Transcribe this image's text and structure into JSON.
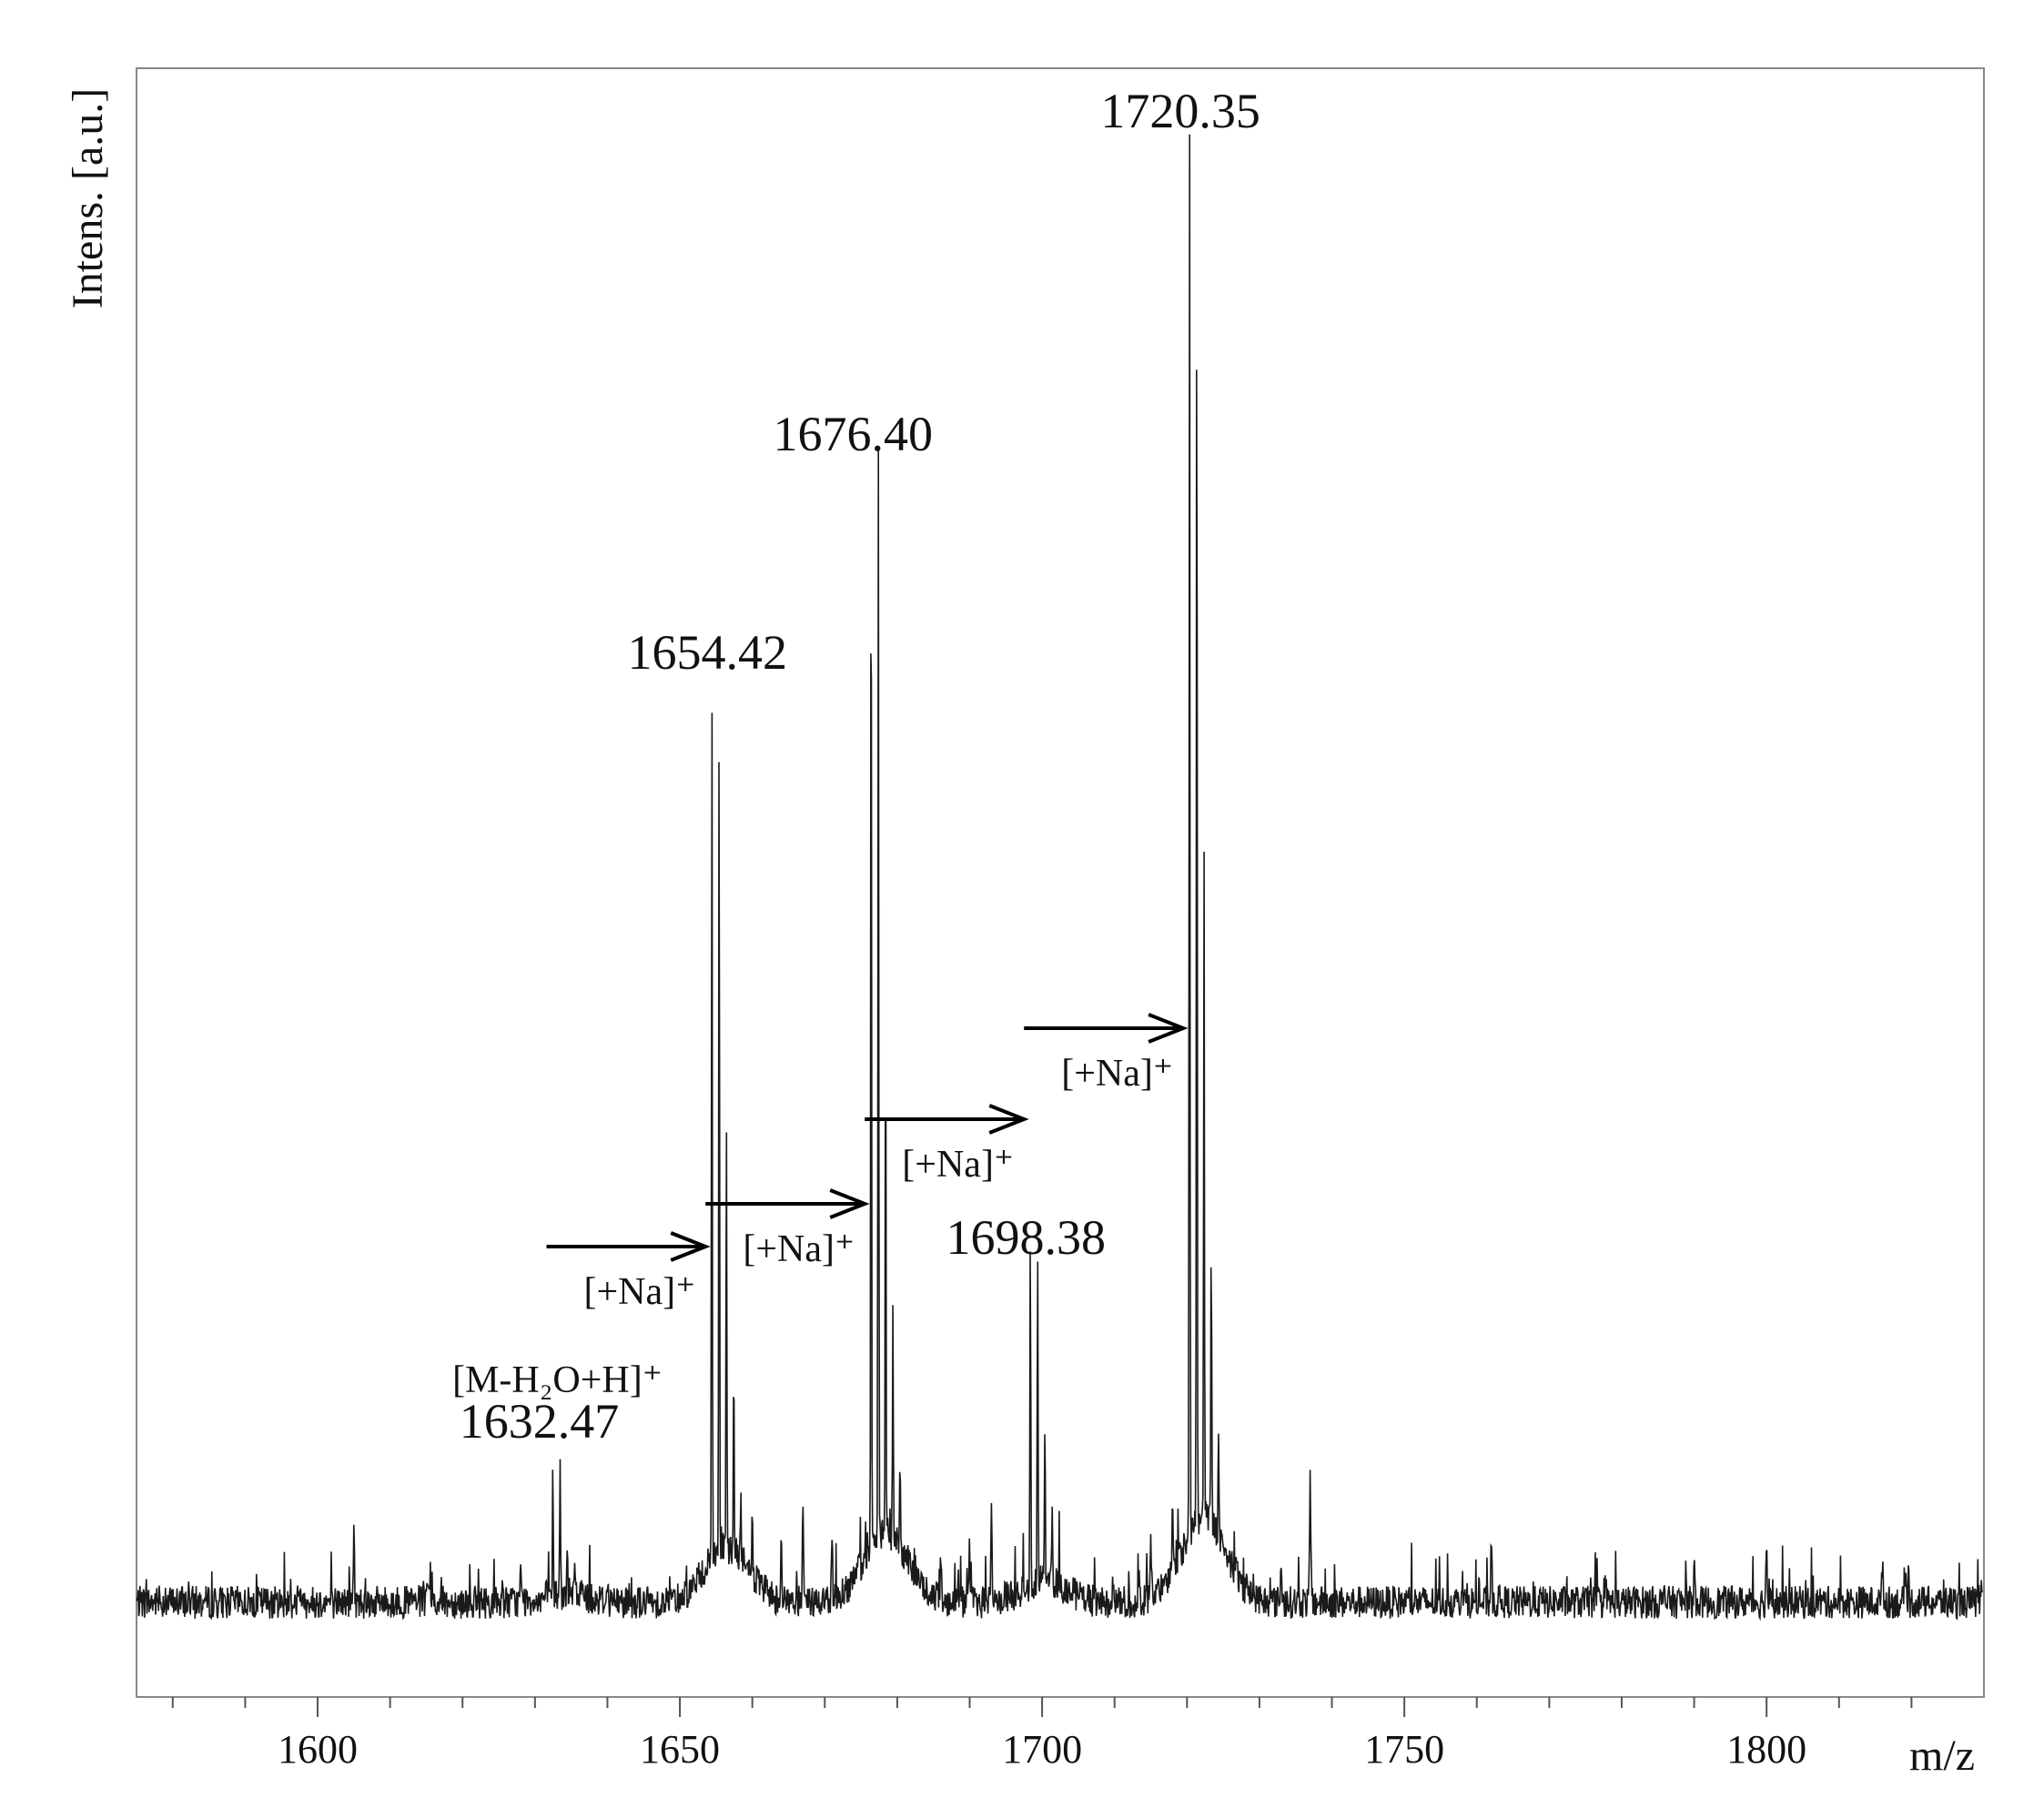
{
  "chart_data": {
    "type": "line",
    "title": "",
    "xlabel": "m/z",
    "ylabel": "Intens. [a.u.]",
    "xlim": [
      1575,
      1830
    ],
    "ylim": [
      0,
      1.0
    ],
    "x_ticks": [
      1600,
      1650,
      1700,
      1750,
      1800
    ],
    "x_tick_labels": [
      "1600",
      "1650",
      "1700",
      "1750",
      "1800"
    ],
    "y_tick_labels": [],
    "grid": false,
    "legend": "none",
    "baseline_intensity": 0.03,
    "peaks": [
      {
        "mz": 1632.47,
        "intensity": 0.09,
        "label": "1632.47"
      },
      {
        "mz": 1654.42,
        "intensity": 0.6,
        "label": "1654.42"
      },
      {
        "mz": 1676.4,
        "intensity": 0.77,
        "label": "1676.40"
      },
      {
        "mz": 1698.38,
        "intensity": 0.24,
        "label": "1698.38"
      },
      {
        "mz": 1720.35,
        "intensity": 0.95,
        "label": "1720.35"
      }
    ],
    "annotations": [
      {
        "text": "[M-H₂O+H]⁺",
        "mz": 1632.47
      },
      {
        "text": "[+Na]⁺",
        "from_mz": 1632.47,
        "to_mz": 1654.42
      },
      {
        "text": "[+Na]⁺",
        "from_mz": 1654.42,
        "to_mz": 1676.4
      },
      {
        "text": "[+Na]⁺",
        "from_mz": 1676.4,
        "to_mz": 1698.38
      },
      {
        "text": "[+Na]⁺",
        "from_mz": 1698.38,
        "to_mz": 1720.35
      }
    ],
    "colors": {
      "trace": "#1a1a1a",
      "axis": "#555555",
      "arrow": "#000000"
    }
  }
}
